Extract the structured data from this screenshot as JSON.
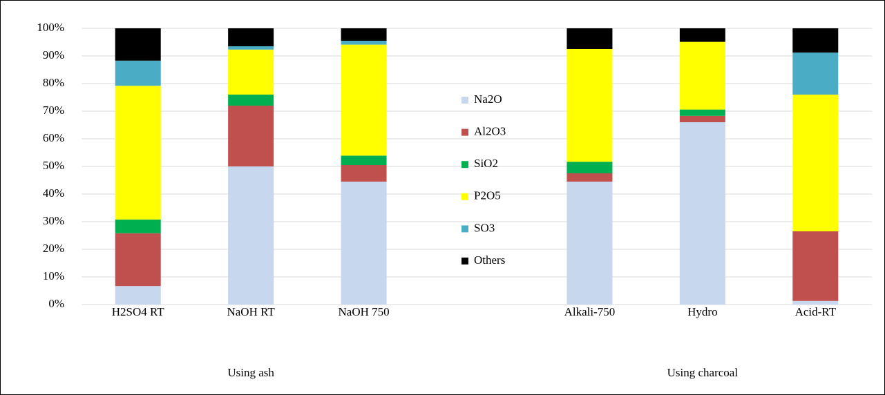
{
  "chart_data": {
    "type": "stacked_bar",
    "categories": [
      "H2SO4 RT",
      "NaOH RT",
      "NaOH 750",
      null,
      "Alkali-750",
      "Hydro",
      "Acid-RT"
    ],
    "group_labels": [
      "Using ash",
      "Using charcoal"
    ],
    "series": [
      {
        "name": "Na2O",
        "color": "#c6d7ee",
        "values": [
          6.7,
          50,
          44.5,
          null,
          44.5,
          66,
          1.3
        ]
      },
      {
        "name": "Al2O3",
        "color": "#c0504d",
        "values": [
          19.1,
          22,
          6,
          null,
          3,
          2.3,
          25.2
        ]
      },
      {
        "name": "SiO2",
        "color": "#00b050",
        "values": [
          5,
          4,
          3.4,
          null,
          4.2,
          2.3,
          0
        ]
      },
      {
        "name": "P2O5",
        "color": "#ffff00",
        "values": [
          48.4,
          16.3,
          40.2,
          null,
          40.8,
          24.5,
          49.5
        ]
      },
      {
        "name": "SO3",
        "color": "#4bacc6",
        "values": [
          9.1,
          1.2,
          1.4,
          null,
          0,
          0,
          15.2
        ]
      },
      {
        "name": "Others",
        "color": "#000000",
        "values": [
          11.7,
          6.5,
          4.5,
          null,
          7.5,
          4.9,
          8.8
        ]
      }
    ],
    "ylim": [
      0,
      100
    ],
    "yticks": [
      {
        "value": 0,
        "label": "0%"
      },
      {
        "value": 10,
        "label": "10%"
      },
      {
        "value": 20,
        "label": "20%"
      },
      {
        "value": 30,
        "label": "30%"
      },
      {
        "value": 40,
        "label": "40%"
      },
      {
        "value": 50,
        "label": "50%"
      },
      {
        "value": 60,
        "label": "60%"
      },
      {
        "value": 70,
        "label": "70%"
      },
      {
        "value": 80,
        "label": "80%"
      },
      {
        "value": 90,
        "label": "90%"
      },
      {
        "value": 100,
        "label": "100%"
      }
    ],
    "grid": true,
    "legend": "center"
  }
}
